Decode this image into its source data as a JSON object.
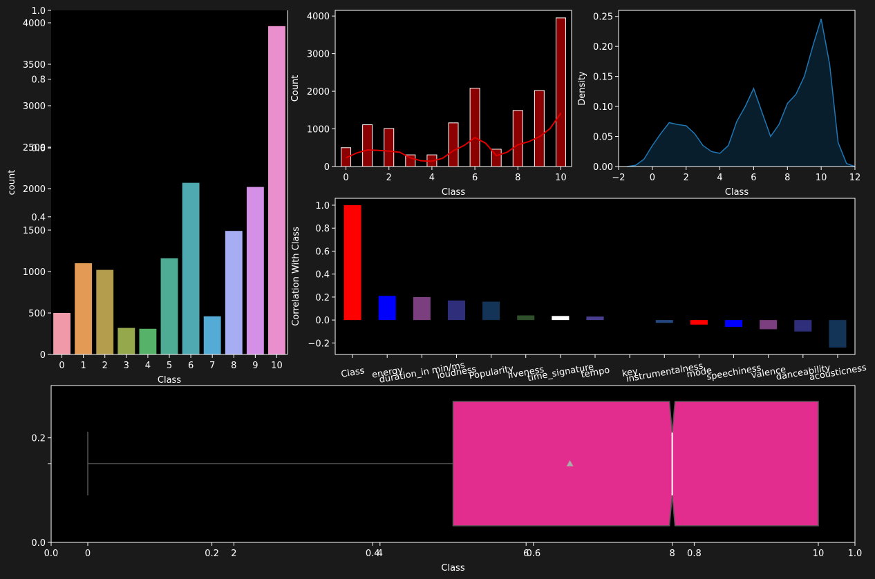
{
  "colors": {
    "figure_bg": "#1a1a1a",
    "axes_bg": "#000000",
    "text": "#ffffff",
    "accent_pink": "#e22d8f",
    "hist_bar": "#8b0000",
    "kde_line": "#e00000",
    "density_line": "#1f77b4"
  },
  "chart_data": [
    {
      "id": "count_bar",
      "type": "bar",
      "xlabel": "Class",
      "ylabel": "count",
      "categories": [
        "0",
        "1",
        "2",
        "3",
        "4",
        "5",
        "6",
        "7",
        "8",
        "9",
        "10"
      ],
      "values": [
        500,
        1100,
        1020,
        320,
        310,
        1160,
        2070,
        460,
        1490,
        2020,
        3960
      ],
      "colors": [
        "#f09aa9",
        "#e39a54",
        "#b49d4d",
        "#96a84c",
        "#57b269",
        "#4eac95",
        "#4fa9b0",
        "#54abd6",
        "#a6adf2",
        "#d48fe6",
        "#e98fcd"
      ],
      "ylim": [
        0,
        4150
      ],
      "yticks": [
        0,
        500,
        1000,
        1500,
        2000,
        2500,
        3000,
        3500,
        4000
      ],
      "overlay_yticks": [
        "0.4",
        "0.6",
        "0.8",
        "1.0"
      ]
    },
    {
      "id": "histogram",
      "type": "bar",
      "xlabel": "Class",
      "ylabel": "Count",
      "x": [
        0,
        1,
        2,
        3,
        4,
        5,
        6,
        7,
        8,
        9,
        10
      ],
      "values": [
        500,
        1110,
        1010,
        310,
        310,
        1160,
        2080,
        460,
        1490,
        2020,
        3950
      ],
      "kde": [
        [
          0,
          230
        ],
        [
          0.5,
          360
        ],
        [
          1,
          440
        ],
        [
          1.5,
          430
        ],
        [
          2,
          410
        ],
        [
          2.5,
          380
        ],
        [
          3,
          230
        ],
        [
          3.5,
          150
        ],
        [
          4,
          140
        ],
        [
          4.5,
          220
        ],
        [
          5,
          420
        ],
        [
          5.5,
          560
        ],
        [
          6,
          770
        ],
        [
          6.5,
          620
        ],
        [
          7,
          290
        ],
        [
          7.5,
          380
        ],
        [
          8,
          580
        ],
        [
          8.5,
          660
        ],
        [
          9,
          790
        ],
        [
          9.5,
          1010
        ],
        [
          10,
          1420
        ]
      ],
      "xlim": [
        -0.5,
        10.5
      ],
      "ylim": [
        0,
        4150
      ],
      "xticks": [
        0,
        2,
        4,
        6,
        8,
        10
      ],
      "yticks": [
        0,
        1000,
        2000,
        3000,
        4000
      ]
    },
    {
      "id": "density",
      "type": "area",
      "xlabel": "Class",
      "ylabel": "Density",
      "xlim": [
        -2,
        12
      ],
      "ylim": [
        0,
        0.26
      ],
      "xticks": [
        -2,
        0,
        2,
        4,
        6,
        8,
        10,
        12
      ],
      "yticks": [
        0.0,
        0.05,
        0.1,
        0.15,
        0.2,
        0.25
      ],
      "points": [
        [
          -1.5,
          0
        ],
        [
          -1,
          0.002
        ],
        [
          -0.5,
          0.012
        ],
        [
          0,
          0.035
        ],
        [
          0.5,
          0.055
        ],
        [
          1,
          0.073
        ],
        [
          1.5,
          0.07
        ],
        [
          2,
          0.068
        ],
        [
          2.5,
          0.055
        ],
        [
          3,
          0.035
        ],
        [
          3.5,
          0.025
        ],
        [
          4,
          0.022
        ],
        [
          4.5,
          0.035
        ],
        [
          5,
          0.075
        ],
        [
          5.5,
          0.1
        ],
        [
          6,
          0.13
        ],
        [
          6.5,
          0.09
        ],
        [
          7,
          0.05
        ],
        [
          7.5,
          0.07
        ],
        [
          8,
          0.105
        ],
        [
          8.5,
          0.12
        ],
        [
          9,
          0.15
        ],
        [
          9.5,
          0.2
        ],
        [
          10,
          0.246
        ],
        [
          10.5,
          0.17
        ],
        [
          11,
          0.04
        ],
        [
          11.5,
          0.005
        ],
        [
          12,
          0
        ]
      ]
    },
    {
      "id": "correlation",
      "type": "bar",
      "ylabel": "Correlation With Class",
      "categories": [
        "Class",
        "energy",
        "duration_in min/ms",
        "loudness",
        "Popularity",
        "liveness",
        "time_signature",
        "tempo",
        "key",
        "instrumentalness",
        "mode",
        "speechiness",
        "valence",
        "danceability",
        "acousticness"
      ],
      "values": [
        1.0,
        0.21,
        0.2,
        0.17,
        0.16,
        0.04,
        0.035,
        0.03,
        0.0,
        -0.025,
        -0.04,
        -0.06,
        -0.08,
        -0.1,
        -0.24
      ],
      "colors": [
        "#ff0000",
        "#0000ff",
        "#7b3f7f",
        "#2e2e7a",
        "#133457",
        "#2e4f2a",
        "#ffffff",
        "#4a3f8f",
        "#000000",
        "#24487e",
        "#ff0000",
        "#0000ff",
        "#7b3f7f",
        "#2e2e7a",
        "#133457"
      ],
      "ylim": [
        -0.3,
        1.06
      ],
      "yticks": [
        -0.2,
        0.0,
        0.2,
        0.4,
        0.6,
        0.8,
        1.0
      ]
    },
    {
      "id": "boxplot",
      "type": "box",
      "xlabel": "Class",
      "whisker_low": 0,
      "q1": 5,
      "median": 8,
      "mean": 6.6,
      "q3": 10,
      "whisker_high": 10,
      "xticks": [
        0,
        2,
        4,
        6,
        8,
        10
      ],
      "overlay_xticks": [
        "0.0",
        "0.2",
        "0.4",
        "0.6",
        "0.8",
        "1.0"
      ],
      "overlay_yticks": [
        "0.0",
        "0.2"
      ]
    }
  ]
}
